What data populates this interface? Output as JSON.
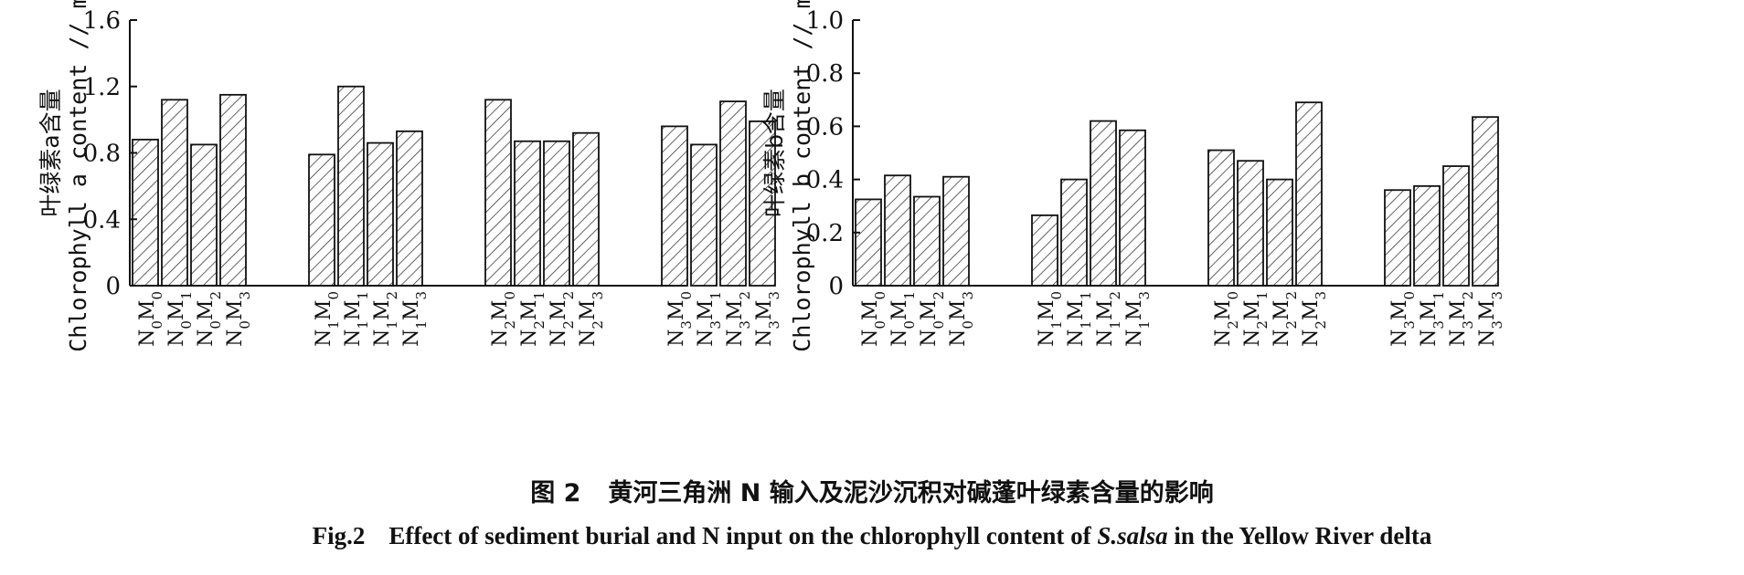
{
  "chart_data": [
    {
      "type": "bar",
      "ylabel_cn": "叶绿素a含量",
      "ylabel_en": "Chlorophyll a content",
      "ylabel_unit": "mg/g",
      "ylim": [
        0,
        1.6
      ],
      "yticks": [
        "0",
        "0.4",
        "0.8",
        "1.2",
        "1.6"
      ],
      "grid": false,
      "bar_fill": "hatched",
      "groups": [
        {
          "categories": [
            {
              "n": "0",
              "m": "0"
            },
            {
              "n": "0",
              "m": "1"
            },
            {
              "n": "0",
              "m": "2"
            },
            {
              "n": "0",
              "m": "3"
            }
          ],
          "values": [
            0.88,
            1.12,
            0.85,
            1.15
          ]
        },
        {
          "categories": [
            {
              "n": "1",
              "m": "0"
            },
            {
              "n": "1",
              "m": "1"
            },
            {
              "n": "1",
              "m": "2"
            },
            {
              "n": "1",
              "m": "3"
            }
          ],
          "values": [
            0.79,
            1.2,
            0.86,
            0.93
          ]
        },
        {
          "categories": [
            {
              "n": "2",
              "m": "0"
            },
            {
              "n": "2",
              "m": "1"
            },
            {
              "n": "2",
              "m": "2"
            },
            {
              "n": "2",
              "m": "3"
            }
          ],
          "values": [
            1.12,
            0.87,
            0.87,
            0.92
          ]
        },
        {
          "categories": [
            {
              "n": "3",
              "m": "0"
            },
            {
              "n": "3",
              "m": "1"
            },
            {
              "n": "3",
              "m": "2"
            },
            {
              "n": "3",
              "m": "3"
            }
          ],
          "values": [
            0.96,
            0.85,
            1.11,
            0.99
          ]
        }
      ]
    },
    {
      "type": "bar",
      "ylabel_cn": "叶绿素b含量",
      "ylabel_en": "Chlorophyll b content",
      "ylabel_unit": "mg/g",
      "ylim": [
        0,
        1.0
      ],
      "yticks": [
        "0",
        "0.2",
        "0.4",
        "0.6",
        "0.8",
        "1.0"
      ],
      "grid": false,
      "bar_fill": "hatched",
      "groups": [
        {
          "categories": [
            {
              "n": "0",
              "m": "0"
            },
            {
              "n": "0",
              "m": "1"
            },
            {
              "n": "0",
              "m": "2"
            },
            {
              "n": "0",
              "m": "3"
            }
          ],
          "values": [
            0.325,
            0.415,
            0.335,
            0.41
          ]
        },
        {
          "categories": [
            {
              "n": "1",
              "m": "0"
            },
            {
              "n": "1",
              "m": "1"
            },
            {
              "n": "1",
              "m": "2"
            },
            {
              "n": "1",
              "m": "3"
            }
          ],
          "values": [
            0.265,
            0.4,
            0.62,
            0.585
          ]
        },
        {
          "categories": [
            {
              "n": "2",
              "m": "0"
            },
            {
              "n": "2",
              "m": "1"
            },
            {
              "n": "2",
              "m": "2"
            },
            {
              "n": "2",
              "m": "3"
            }
          ],
          "values": [
            0.51,
            0.47,
            0.4,
            0.69
          ]
        },
        {
          "categories": [
            {
              "n": "3",
              "m": "0"
            },
            {
              "n": "3",
              "m": "1"
            },
            {
              "n": "3",
              "m": "2"
            },
            {
              "n": "3",
              "m": "3"
            }
          ],
          "values": [
            0.36,
            0.375,
            0.45,
            0.635
          ]
        }
      ]
    }
  ],
  "caption": {
    "cn_label": "图 2",
    "cn_title": "黄河三角洲 N 输入及泥沙沉积对碱蓬叶绿素含量的影响",
    "en_label": "Fig.2",
    "en_title_before": "Effect of sediment burial and N input on the chlorophyll content of ",
    "en_species": "S.salsa",
    "en_title_after": " in the Yellow River delta"
  }
}
